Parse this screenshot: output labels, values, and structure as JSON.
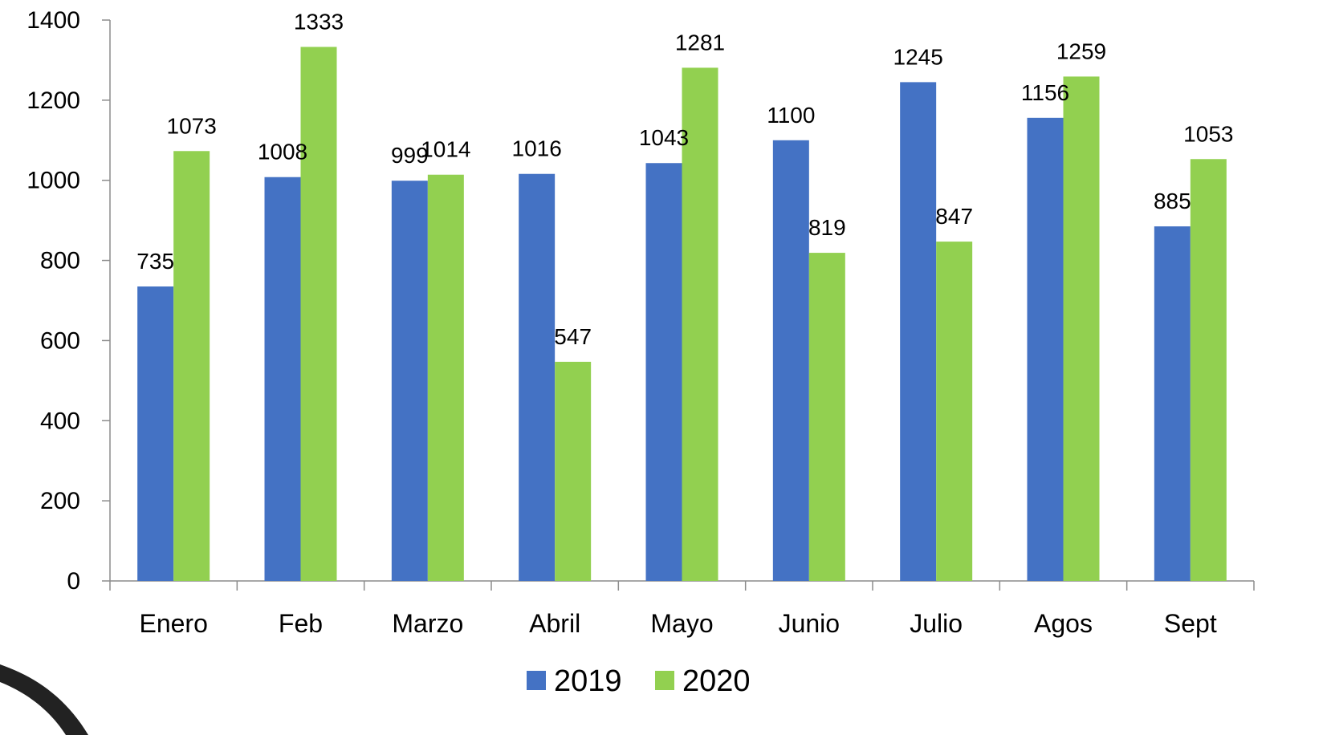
{
  "chart_data": {
    "type": "bar",
    "title": "",
    "xlabel": "",
    "ylabel": "",
    "ylim": [
      0,
      1400
    ],
    "yticks": [
      0,
      200,
      400,
      600,
      800,
      1000,
      1200,
      1400
    ],
    "grid": false,
    "legend_position": "bottom",
    "categories": [
      "Enero",
      "Feb",
      "Marzo",
      "Abril",
      "Mayo",
      "Junio",
      "Julio",
      "Agos",
      "Sept"
    ],
    "series": [
      {
        "name": "2019",
        "color": "#4472C4",
        "values": [
          735,
          1008,
          999,
          1016,
          1043,
          1100,
          1245,
          1156,
          885
        ]
      },
      {
        "name": "2020",
        "color": "#92D050",
        "values": [
          1073,
          1333,
          1014,
          547,
          1281,
          819,
          847,
          1259,
          1053
        ]
      }
    ]
  }
}
